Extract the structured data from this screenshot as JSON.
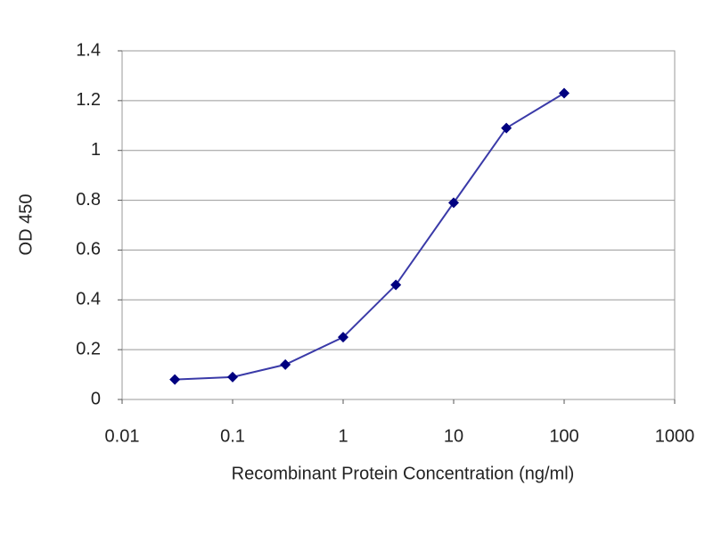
{
  "chart_data": {
    "type": "line",
    "xlabel": "Recombinant Protein Concentration (ng/ml)",
    "ylabel": "OD 450",
    "x": [
      0.03,
      0.1,
      0.3,
      1,
      3,
      10,
      30,
      100
    ],
    "series": [
      {
        "name": "OD 450",
        "color": "#000080",
        "values": [
          0.08,
          0.09,
          0.14,
          0.25,
          0.46,
          0.79,
          1.09,
          1.23
        ]
      }
    ],
    "xscale": "log",
    "xlim": [
      0.01,
      1000
    ],
    "xticks": [
      0.01,
      0.1,
      1,
      10,
      100,
      1000
    ],
    "ylim": [
      0,
      1.4
    ],
    "yticks": [
      0,
      0.2,
      0.4,
      0.6,
      0.8,
      1,
      1.2,
      1.4
    ],
    "grid": true
  }
}
